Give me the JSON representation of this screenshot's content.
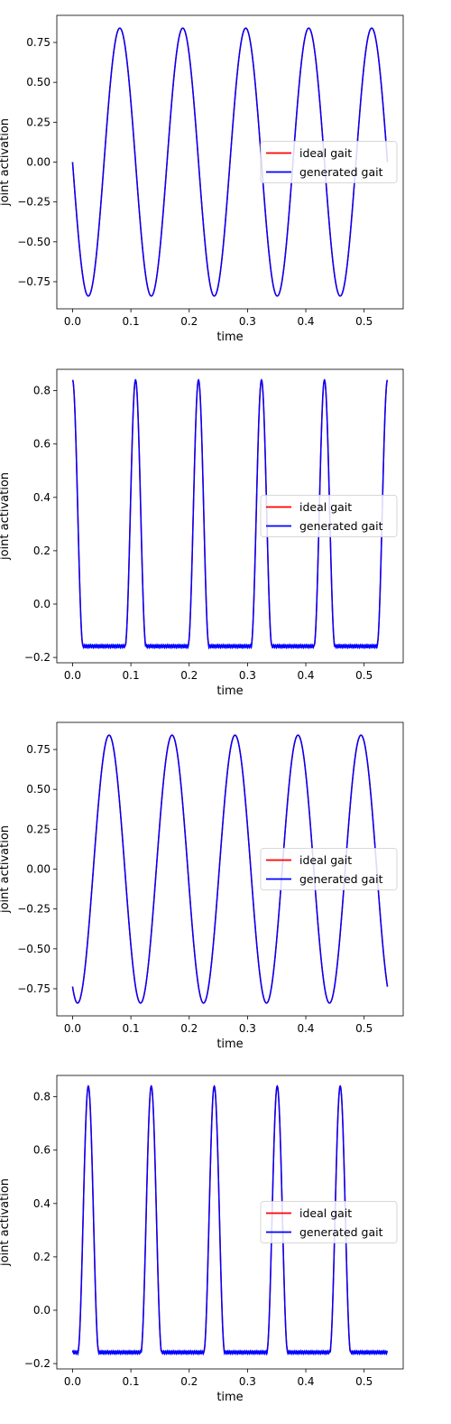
{
  "chart_data": [
    {
      "type": "line",
      "xlabel": "time",
      "ylabel": "joint activation",
      "xlim": [
        -0.027,
        0.567
      ],
      "ylim": [
        -0.92,
        0.92
      ],
      "xticks": [
        0.0,
        0.1,
        0.2,
        0.3,
        0.4,
        0.5
      ],
      "xtick_labels": [
        "0.0",
        "0.1",
        "0.2",
        "0.3",
        "0.4",
        "0.5"
      ],
      "yticks": [
        -0.75,
        -0.5,
        -0.25,
        0.0,
        0.25,
        0.5,
        0.75
      ],
      "ytick_labels": [
        "−0.75",
        "−0.50",
        "−0.25",
        "0.00",
        "0.25",
        "0.50",
        "0.75"
      ],
      "legend": "center-right",
      "grid": false,
      "wave": {
        "kind": "sine",
        "amplitude": 0.84,
        "period": 0.108,
        "phase": 0.0,
        "duration": 0.54
      },
      "series": [
        {
          "name": "ideal gait",
          "color": "#ff0000"
        },
        {
          "name": "generated gait",
          "color": "#0000ff"
        }
      ]
    },
    {
      "type": "line",
      "xlabel": "time",
      "ylabel": "joint activation",
      "xlim": [
        -0.027,
        0.567
      ],
      "ylim": [
        -0.22,
        0.88
      ],
      "xticks": [
        0.0,
        0.1,
        0.2,
        0.3,
        0.4,
        0.5
      ],
      "xtick_labels": [
        "0.0",
        "0.1",
        "0.2",
        "0.3",
        "0.4",
        "0.5"
      ],
      "yticks": [
        -0.2,
        0.0,
        0.2,
        0.4,
        0.6,
        0.8
      ],
      "ytick_labels": [
        "−0.2",
        "0.0",
        "0.2",
        "0.4",
        "0.6",
        "0.8"
      ],
      "legend": "center-right",
      "grid": false,
      "wave": {
        "kind": "pulse",
        "high": 0.84,
        "low": -0.158,
        "period": 0.108,
        "centers": [
          0.0,
          0.108,
          0.216,
          0.324,
          0.432,
          0.54
        ],
        "half_width": 0.018,
        "duration": 0.54
      },
      "series": [
        {
          "name": "ideal gait",
          "color": "#ff0000"
        },
        {
          "name": "generated gait",
          "color": "#0000ff"
        }
      ]
    },
    {
      "type": "line",
      "xlabel": "time",
      "ylabel": "joint activation",
      "xlim": [
        -0.027,
        0.567
      ],
      "ylim": [
        -0.92,
        0.92
      ],
      "xticks": [
        0.0,
        0.1,
        0.2,
        0.3,
        0.4,
        0.5
      ],
      "xtick_labels": [
        "0.0",
        "0.1",
        "0.2",
        "0.3",
        "0.4",
        "0.5"
      ],
      "yticks": [
        -0.75,
        -0.5,
        -0.25,
        0.0,
        0.25,
        0.5,
        0.75
      ],
      "ytick_labels": [
        "−0.75",
        "−0.50",
        "−0.25",
        "0.00",
        "0.25",
        "0.50",
        "0.75"
      ],
      "legend": "center-right",
      "grid": false,
      "wave": {
        "kind": "sine",
        "amplitude": 0.84,
        "period": 0.108,
        "phase": 1.07,
        "duration": 0.54
      },
      "series": [
        {
          "name": "ideal gait",
          "color": "#ff0000"
        },
        {
          "name": "generated gait",
          "color": "#0000ff"
        }
      ]
    },
    {
      "type": "line",
      "xlabel": "time",
      "ylabel": "joint activation",
      "xlim": [
        -0.027,
        0.567
      ],
      "ylim": [
        -0.22,
        0.88
      ],
      "xticks": [
        0.0,
        0.1,
        0.2,
        0.3,
        0.4,
        0.5
      ],
      "xtick_labels": [
        "0.0",
        "0.1",
        "0.2",
        "0.3",
        "0.4",
        "0.5"
      ],
      "yticks": [
        -0.2,
        0.0,
        0.2,
        0.4,
        0.6,
        0.8
      ],
      "ytick_labels": [
        "−0.2",
        "0.0",
        "0.2",
        "0.4",
        "0.6",
        "0.8"
      ],
      "legend": "center-right",
      "grid": false,
      "wave": {
        "kind": "pulse",
        "high": 0.84,
        "low": -0.158,
        "period": 0.108,
        "centers": [
          0.027,
          0.135,
          0.243,
          0.351,
          0.459
        ],
        "half_width": 0.018,
        "duration": 0.54
      },
      "series": [
        {
          "name": "ideal gait",
          "color": "#ff0000"
        },
        {
          "name": "generated gait",
          "color": "#0000ff"
        }
      ]
    }
  ]
}
